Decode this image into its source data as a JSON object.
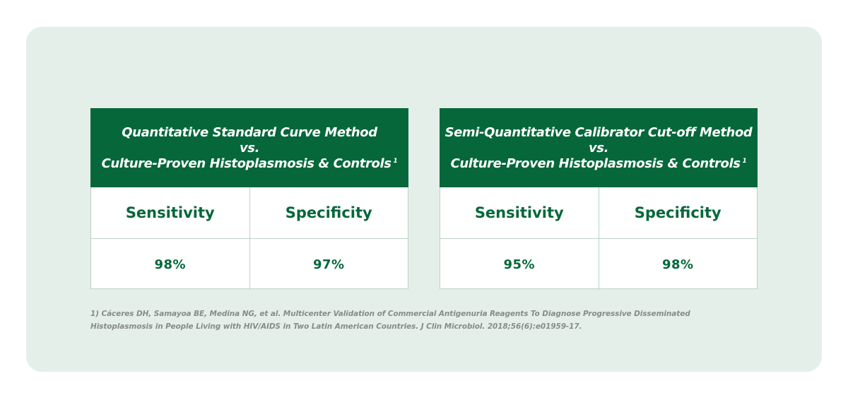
{
  "tables": [
    {
      "header": {
        "line1": "Quantitative Standard Curve Method",
        "line2": "vs.",
        "line3": "Culture-Proven Histoplasmosis & Controls",
        "ref": "1"
      },
      "labels": [
        "Sensitivity",
        "Specificity"
      ],
      "values": [
        "98%",
        "97%"
      ]
    },
    {
      "header": {
        "line1": "Semi-Quantitative Calibrator Cut-off Method",
        "line2": "vs.",
        "line3": "Culture-Proven Histoplasmosis & Controls",
        "ref": "1"
      },
      "labels": [
        "Sensitivity",
        "Specificity"
      ],
      "values": [
        "95%",
        "98%"
      ]
    }
  ],
  "footnote": {
    "line1": "1) Cáceres DH, Samayoa BE, Medina NG, et al. Multicenter Validation of Commercial Antigenuria Reagents To Diagnose Progressive Disseminated",
    "line2": "Histoplasmosis in People Living with HIV/AIDS in Two Latin American Countries. J Clin Microbiol. 2018;56(6):e01959-17."
  },
  "colors": {
    "accent": "#05673a",
    "panel_background": "#e5efe9",
    "border": "#bcd3c6",
    "footnote_text": "#878c89"
  }
}
